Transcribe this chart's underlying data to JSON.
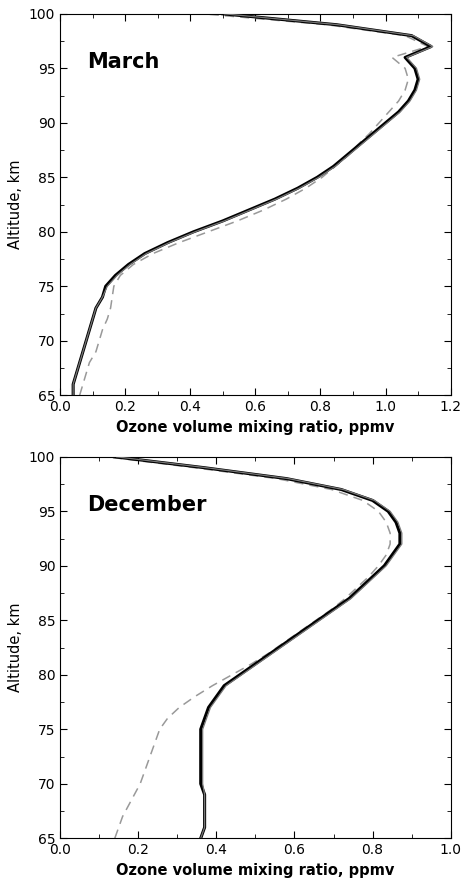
{
  "title_march": "March",
  "title_december": "December",
  "xlabel": "Ozone volume mixing ratio, ppmv",
  "ylabel": "Altitude, km",
  "ylim": [
    65,
    100
  ],
  "march_xlim": [
    0,
    1.2
  ],
  "december_xlim": [
    0,
    1.0
  ],
  "march_xticks": [
    0,
    0.2,
    0.4,
    0.6,
    0.8,
    1.0,
    1.2
  ],
  "december_xticks": [
    0,
    0.2,
    0.4,
    0.6,
    0.8,
    1.0
  ],
  "yticks": [
    65,
    70,
    75,
    80,
    85,
    90,
    95,
    100
  ],
  "march": {
    "altitude": [
      65,
      66,
      67,
      68,
      69,
      70,
      71,
      72,
      73,
      74,
      75,
      76,
      77,
      78,
      79,
      80,
      81,
      82,
      83,
      84,
      85,
      86,
      87,
      88,
      89,
      90,
      91,
      92,
      93,
      94,
      95,
      96,
      97,
      98,
      99,
      100
    ],
    "thick": [
      0.04,
      0.04,
      0.05,
      0.06,
      0.07,
      0.08,
      0.09,
      0.1,
      0.11,
      0.13,
      0.14,
      0.17,
      0.21,
      0.26,
      0.33,
      0.41,
      0.5,
      0.58,
      0.66,
      0.73,
      0.79,
      0.84,
      0.88,
      0.92,
      0.96,
      1.0,
      1.04,
      1.07,
      1.09,
      1.1,
      1.09,
      1.06,
      1.14,
      1.08,
      0.85,
      0.5
    ],
    "thin_762": [
      0.04,
      0.04,
      0.05,
      0.06,
      0.07,
      0.08,
      0.09,
      0.1,
      0.11,
      0.13,
      0.145,
      0.175,
      0.215,
      0.265,
      0.335,
      0.415,
      0.505,
      0.585,
      0.665,
      0.735,
      0.795,
      0.845,
      0.885,
      0.925,
      0.965,
      1.005,
      1.045,
      1.075,
      1.095,
      1.105,
      1.095,
      1.065,
      1.145,
      1.085,
      0.855,
      0.505
    ],
    "dashed_127": [
      0.06,
      0.07,
      0.08,
      0.09,
      0.11,
      0.12,
      0.13,
      0.145,
      0.155,
      0.16,
      0.165,
      0.185,
      0.225,
      0.285,
      0.365,
      0.455,
      0.545,
      0.625,
      0.695,
      0.755,
      0.805,
      0.845,
      0.885,
      0.915,
      0.95,
      0.98,
      1.01,
      1.04,
      1.06,
      1.07,
      1.06,
      1.02,
      1.13,
      1.06,
      0.82,
      0.44
    ]
  },
  "december": {
    "altitude": [
      65,
      66,
      67,
      68,
      69,
      70,
      71,
      72,
      73,
      74,
      75,
      76,
      77,
      78,
      79,
      80,
      81,
      82,
      83,
      84,
      85,
      86,
      87,
      88,
      89,
      90,
      91,
      92,
      93,
      94,
      95,
      96,
      97,
      98,
      99,
      100
    ],
    "thick": [
      0.36,
      0.37,
      0.37,
      0.37,
      0.37,
      0.36,
      0.36,
      0.36,
      0.36,
      0.36,
      0.36,
      0.37,
      0.38,
      0.4,
      0.42,
      0.46,
      0.5,
      0.54,
      0.58,
      0.62,
      0.66,
      0.7,
      0.74,
      0.77,
      0.8,
      0.83,
      0.85,
      0.87,
      0.87,
      0.86,
      0.84,
      0.8,
      0.72,
      0.58,
      0.37,
      0.14
    ],
    "thin_762": [
      0.36,
      0.37,
      0.37,
      0.37,
      0.37,
      0.365,
      0.365,
      0.365,
      0.365,
      0.365,
      0.365,
      0.375,
      0.385,
      0.405,
      0.425,
      0.465,
      0.505,
      0.545,
      0.585,
      0.625,
      0.665,
      0.705,
      0.745,
      0.775,
      0.805,
      0.835,
      0.855,
      0.875,
      0.875,
      0.865,
      0.845,
      0.805,
      0.725,
      0.585,
      0.375,
      0.145
    ],
    "dashed_127": [
      0.14,
      0.15,
      0.16,
      0.175,
      0.19,
      0.205,
      0.215,
      0.225,
      0.235,
      0.245,
      0.255,
      0.275,
      0.305,
      0.345,
      0.39,
      0.44,
      0.49,
      0.535,
      0.575,
      0.615,
      0.655,
      0.695,
      0.73,
      0.76,
      0.79,
      0.815,
      0.835,
      0.845,
      0.845,
      0.835,
      0.815,
      0.775,
      0.695,
      0.555,
      0.345,
      0.12
    ]
  },
  "thick_color": "#000000",
  "thin_color": "#777777",
  "dashed_color": "#999999",
  "thick_lw": 2.2,
  "thin_lw": 0.9,
  "dashed_lw": 1.1,
  "background_color": "#ffffff"
}
